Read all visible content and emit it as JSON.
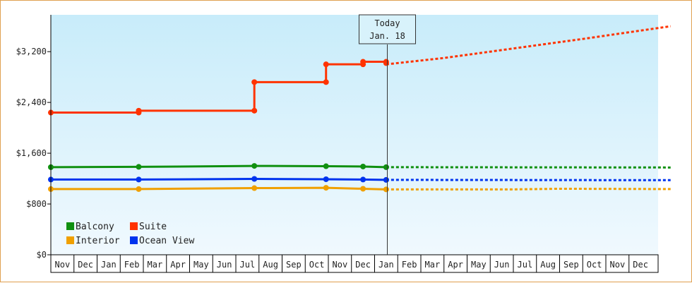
{
  "chart_data": {
    "type": "line",
    "title": "",
    "xlabel": "",
    "ylabel": "",
    "y_ticks": [
      "$0",
      "$800",
      "$1,600",
      "$2,400",
      "$3,200"
    ],
    "y_tick_values": [
      0,
      800,
      1600,
      2400,
      3200
    ],
    "ylim": [
      0,
      3780
    ],
    "month_labels": [
      "Nov",
      "Dec",
      "Jan",
      "Feb",
      "Mar",
      "Apr",
      "May",
      "Jun",
      "Jul",
      "Aug",
      "Sep",
      "Oct",
      "Nov",
      "Dec",
      "Jan",
      "Feb",
      "Mar",
      "Apr",
      "May",
      "Jun",
      "Jul",
      "Aug",
      "Sep",
      "Oct",
      "Nov",
      "Dec"
    ],
    "today_marker": {
      "line1": "Today",
      "line2": "Jan. 18",
      "month_index": 14.55
    },
    "legend_placement": "bottom-left",
    "grid": false,
    "series": [
      {
        "name": "Balcony",
        "color": "#109010",
        "history": [
          [
            0,
            1380
          ],
          [
            3.8,
            1385
          ],
          [
            8.8,
            1400
          ],
          [
            11.9,
            1395
          ],
          [
            13.5,
            1390
          ],
          [
            14.5,
            1380
          ]
        ],
        "forecast": [
          [
            14.5,
            1380
          ],
          [
            26.8,
            1375
          ]
        ]
      },
      {
        "name": "Suite",
        "color": "#ff3300",
        "history": [
          [
            0,
            2240
          ],
          [
            3.8,
            2240
          ],
          [
            3.8,
            2270
          ],
          [
            8.8,
            2270
          ],
          [
            8.8,
            2720
          ],
          [
            11.9,
            2720
          ],
          [
            11.9,
            3000
          ],
          [
            13.5,
            3000
          ],
          [
            13.5,
            3040
          ],
          [
            14.5,
            3040
          ],
          [
            14.5,
            3020
          ]
        ],
        "forecast": [
          [
            14.5,
            3000
          ],
          [
            17,
            3100
          ],
          [
            20,
            3250
          ],
          [
            23,
            3400
          ],
          [
            26.8,
            3600
          ]
        ]
      },
      {
        "name": "Interior",
        "color": "#f0a000",
        "history": [
          [
            0,
            1035
          ],
          [
            3.8,
            1035
          ],
          [
            8.8,
            1050
          ],
          [
            11.9,
            1055
          ],
          [
            13.5,
            1040
          ],
          [
            14.5,
            1030
          ]
        ],
        "forecast": [
          [
            14.5,
            1030
          ],
          [
            17,
            1030
          ],
          [
            20,
            1030
          ],
          [
            22,
            1040
          ],
          [
            26.8,
            1035
          ]
        ]
      },
      {
        "name": "Ocean View",
        "color": "#0033ee",
        "history": [
          [
            0,
            1185
          ],
          [
            3.8,
            1185
          ],
          [
            8.8,
            1195
          ],
          [
            11.9,
            1190
          ],
          [
            13.5,
            1185
          ],
          [
            14.5,
            1180
          ]
        ],
        "forecast": [
          [
            14.5,
            1180
          ],
          [
            26.8,
            1175
          ]
        ]
      }
    ]
  }
}
